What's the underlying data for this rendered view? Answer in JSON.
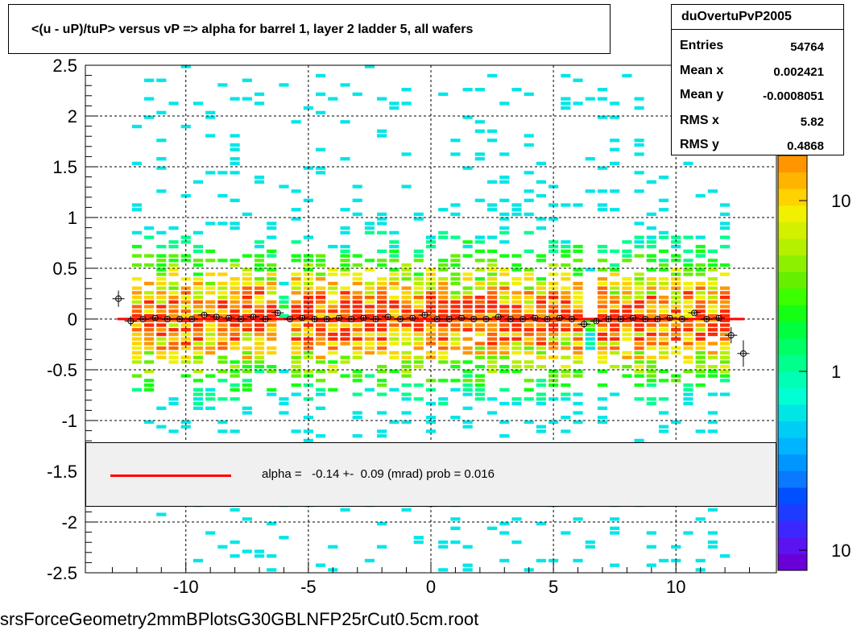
{
  "title": "<(u - uP)/tuP> versus   vP => alpha for barrel 1, layer 2 ladder 5, all wafers",
  "stats": {
    "name": "duOvertuPvP2005",
    "rows": [
      {
        "label": "Entries",
        "value": "54764"
      },
      {
        "label": "Mean x",
        "value": "0.002421"
      },
      {
        "label": "Mean y",
        "value": "-0.0008051"
      },
      {
        "label": "RMS x",
        "value": "5.82"
      },
      {
        "label": "RMS y",
        "value": "0.4868"
      }
    ]
  },
  "legend": {
    "text": "alpha =   -0.14 +-  0.09 (mrad) prob = 0.016",
    "line_color": "#ff0000"
  },
  "footer": "srsForceGeometry2mmBPlotsG30GBLNFP25rCut0.5cm.root",
  "colorbar": {
    "labels": [
      "10",
      "1",
      "10"
    ],
    "colors": [
      "#6a00d8",
      "#5a14f0",
      "#3c28ff",
      "#1e3cff",
      "#0050ff",
      "#0a78ff",
      "#0096ff",
      "#00b4ff",
      "#00cdf5",
      "#00e6e6",
      "#00ffd2",
      "#00ffb4",
      "#00ff8c",
      "#00ff64",
      "#00ff3c",
      "#14ff14",
      "#3cff00",
      "#64f000",
      "#8cf000",
      "#b4f000",
      "#d2f000",
      "#f0f000",
      "#ffd200",
      "#ffb400",
      "#ff9600"
    ]
  },
  "chart_data": {
    "type": "heatmap",
    "xlim": [
      -14.1,
      14.1
    ],
    "ylim": [
      -2.5,
      2.5
    ],
    "xticks": [
      "-10",
      "-5",
      "0",
      "5",
      "10"
    ],
    "yticks": [
      "2.5",
      "2",
      "1.5",
      "1",
      "0.5",
      "0",
      "-0.5",
      "-1",
      "-1.5",
      "-2",
      "-2.5"
    ],
    "grid": true,
    "fit_line": {
      "y": 0.0,
      "x_range": [
        -12.8,
        12.8
      ],
      "color": "#ff0000"
    },
    "profile_points": {
      "x": [
        -12.75,
        -12.25,
        -11.75,
        -11.25,
        -10.75,
        -10.25,
        -9.75,
        -9.25,
        -8.75,
        -8.25,
        -7.75,
        -7.25,
        -6.75,
        -6.25,
        -5.75,
        -5.25,
        -4.75,
        -4.25,
        -3.75,
        -3.25,
        -2.75,
        -2.25,
        -1.75,
        -1.25,
        -0.75,
        -0.25,
        0.25,
        0.75,
        1.25,
        1.75,
        2.25,
        2.75,
        3.25,
        3.75,
        4.25,
        4.75,
        5.25,
        5.75,
        6.25,
        6.75,
        7.25,
        7.75,
        8.25,
        8.75,
        9.25,
        9.75,
        10.25,
        10.75,
        11.25,
        11.75,
        12.25,
        12.75
      ],
      "y": [
        0.2,
        -0.02,
        0.0,
        0.01,
        0.0,
        0.0,
        0.0,
        0.04,
        0.02,
        0.01,
        0.0,
        0.02,
        0.0,
        0.06,
        0.0,
        0.01,
        0.0,
        0.0,
        0.01,
        0.0,
        0.01,
        0.0,
        0.02,
        0.0,
        0.01,
        0.04,
        0.0,
        0.0,
        0.01,
        0.0,
        0.0,
        0.02,
        0.0,
        0.0,
        0.01,
        0.0,
        0.01,
        0.0,
        -0.05,
        -0.02,
        0.0,
        0.0,
        0.01,
        0.0,
        0.0,
        0.01,
        0.0,
        0.06,
        0.0,
        0.01,
        -0.16,
        -0.34
      ],
      "err": [
        0.08,
        0.05,
        0.02,
        0.02,
        0.02,
        0.02,
        0.02,
        0.02,
        0.02,
        0.02,
        0.02,
        0.02,
        0.02,
        0.03,
        0.02,
        0.02,
        0.02,
        0.02,
        0.02,
        0.02,
        0.02,
        0.02,
        0.02,
        0.02,
        0.02,
        0.02,
        0.02,
        0.02,
        0.02,
        0.02,
        0.02,
        0.02,
        0.02,
        0.02,
        0.02,
        0.02,
        0.02,
        0.02,
        0.04,
        0.02,
        0.02,
        0.02,
        0.02,
        0.02,
        0.02,
        0.02,
        0.02,
        0.02,
        0.02,
        0.03,
        0.08,
        0.13
      ]
    }
  }
}
